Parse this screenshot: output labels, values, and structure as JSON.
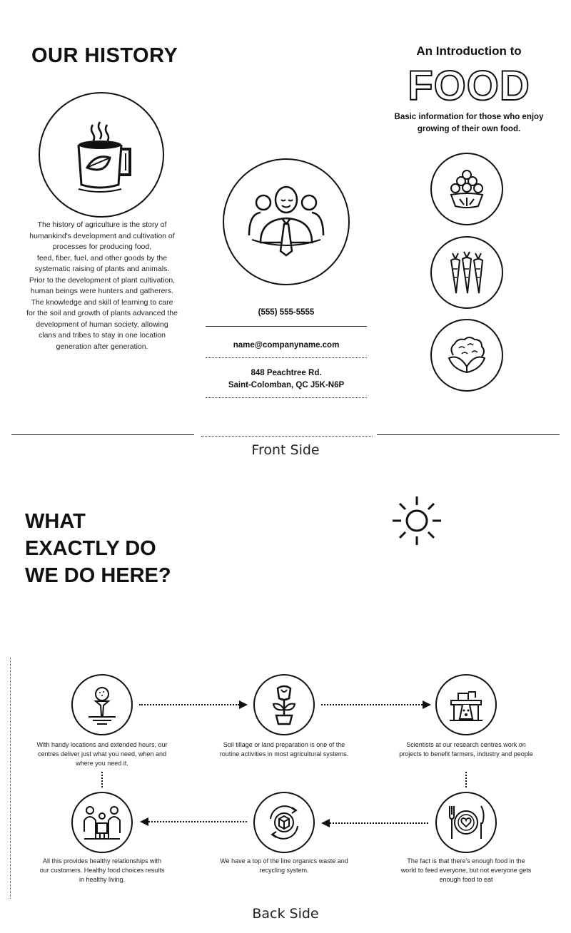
{
  "front": {
    "history": {
      "title": "OUR HISTORY",
      "lines": [
        "The history of agriculture is the story of",
        "humankind's development and cultivation of",
        "processes for producing food,",
        "feed, fiber, fuel, and other goods by the",
        "systematic raising of plants and animals.",
        "Prior to the development of plant cultivation,",
        "human beings were hunters and gatherers.",
        "The knowledge and skill of learning to care",
        "for the soil and growth of plants advanced the",
        "development of human society, allowing",
        "clans and tribes to stay in one location",
        "generation after generation."
      ]
    },
    "contact": {
      "phone": "(555) 555-5555",
      "email": "name@companyname.com",
      "address_line1": "848 Peachtree Rd.",
      "address_line2": "Saint-Colomban, QC J5K-N6P"
    },
    "intro": {
      "subtitle": "An Introduction to",
      "title": "FOOD",
      "desc_line1": "Basic information for those who enjoy",
      "desc_line2": "growing of their own food."
    },
    "label": "Front Side"
  },
  "back": {
    "heading": [
      "WHAT",
      "EXACTLY DO",
      "WE DO HERE?"
    ],
    "steps": [
      {
        "lines": [
          "With handy locations and extended hours, our",
          "centres deliver just what you need, when and",
          "where you need it."
        ]
      },
      {
        "lines": [
          "Soil tillage or land preparation is one of the",
          "routine activities in most agricultural systems."
        ]
      },
      {
        "lines": [
          "Scientists at our research centres work on",
          "projects to benefit farmers, industry and people"
        ]
      },
      {
        "lines": [
          "All this provides healthy relationships with",
          "our customers. Healthy food choices results",
          "in healthy living."
        ]
      },
      {
        "lines": [
          "We have a top of the line organics waste and",
          "recycling system."
        ]
      },
      {
        "lines": [
          "The fact is that there's enough food in the",
          "world to feed everyone, but not everyone gets",
          "enough food to eat"
        ]
      }
    ],
    "label": "Back Side"
  },
  "icons": {
    "mug": "tea-mug-icon",
    "person": "businessman-icon",
    "grapes": "grapes-icon",
    "carrots": "carrots-icon",
    "cauliflower": "cauliflower-icon",
    "sun": "sun-icon",
    "tee": "golf-tee-icon",
    "flower": "flower-pot-icon",
    "factory": "research-lab-icon",
    "plate": "plate-cutlery-icon",
    "recycle": "recycle-globe-icon",
    "people": "healthy-people-icon"
  }
}
